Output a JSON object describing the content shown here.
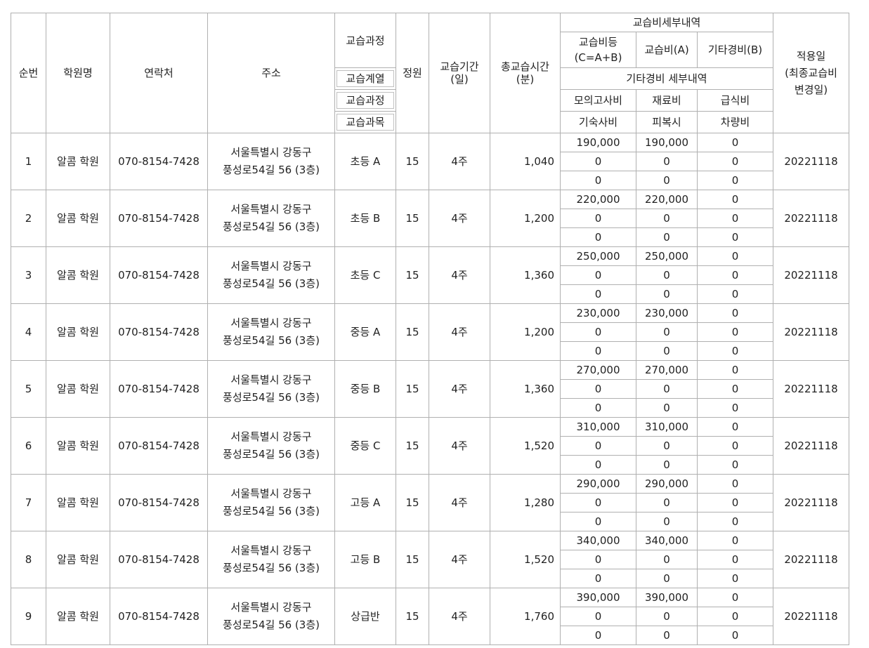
{
  "headers": {
    "no": "순번",
    "academy": "학원명",
    "contact": "연락처",
    "address": "주소",
    "course": "교습과정",
    "course_series": "교습계열",
    "course_process": "교습과정",
    "course_subject": "교습과목",
    "capacity": "정원",
    "period": [
      "교습기간",
      "(일)"
    ],
    "total_time": [
      "총교습시간",
      "(분)"
    ],
    "fee_detail": "교습비세부내역",
    "fee_total": [
      "교습비등",
      "(C=A+B)"
    ],
    "fee_a": "교습비(A)",
    "fee_b": "기타경비(B)",
    "other_detail": "기타경비 세부내역",
    "mock_exam": "모의고사비",
    "material": "재료비",
    "meal": "급식비",
    "dorm": "기숙사비",
    "uniform": "피복시",
    "vehicle": "차량비",
    "apply_date": [
      "적용일",
      "(최종교습비",
      "변경일)"
    ]
  },
  "rows": [
    {
      "no": "1",
      "academy": "알콤 학원",
      "contact": "070-8154-7428",
      "address": [
        "서울특별시 강동구",
        "풍성로54길 56 (3층)"
      ],
      "course": "초등 A",
      "capacity": "15",
      "period": "4주",
      "total_time": "1,040",
      "fees": [
        [
          "190,000",
          "190,000",
          "0"
        ],
        [
          "0",
          "0",
          "0"
        ],
        [
          "0",
          "0",
          "0"
        ]
      ],
      "apply_date": "20221118"
    },
    {
      "no": "2",
      "academy": "알콤 학원",
      "contact": "070-8154-7428",
      "address": [
        "서울특별시 강동구",
        "풍성로54길 56 (3층)"
      ],
      "course": "초등 B",
      "capacity": "15",
      "period": "4주",
      "total_time": "1,200",
      "fees": [
        [
          "220,000",
          "220,000",
          "0"
        ],
        [
          "0",
          "0",
          "0"
        ],
        [
          "0",
          "0",
          "0"
        ]
      ],
      "apply_date": "20221118"
    },
    {
      "no": "3",
      "academy": "알콤 학원",
      "contact": "070-8154-7428",
      "address": [
        "서울특별시 강동구",
        "풍성로54길 56 (3층)"
      ],
      "course": "초등 C",
      "capacity": "15",
      "period": "4주",
      "total_time": "1,360",
      "fees": [
        [
          "250,000",
          "250,000",
          "0"
        ],
        [
          "0",
          "0",
          "0"
        ],
        [
          "0",
          "0",
          "0"
        ]
      ],
      "apply_date": "20221118"
    },
    {
      "no": "4",
      "academy": "알콤 학원",
      "contact": "070-8154-7428",
      "address": [
        "서울특별시 강동구",
        "풍성로54길 56 (3층)"
      ],
      "course": "중등 A",
      "capacity": "15",
      "period": "4주",
      "total_time": "1,200",
      "fees": [
        [
          "230,000",
          "230,000",
          "0"
        ],
        [
          "0",
          "0",
          "0"
        ],
        [
          "0",
          "0",
          "0"
        ]
      ],
      "apply_date": "20221118"
    },
    {
      "no": "5",
      "academy": "알콤 학원",
      "contact": "070-8154-7428",
      "address": [
        "서울특별시 강동구",
        "풍성로54길 56 (3층)"
      ],
      "course": "중등 B",
      "capacity": "15",
      "period": "4주",
      "total_time": "1,360",
      "fees": [
        [
          "270,000",
          "270,000",
          "0"
        ],
        [
          "0",
          "0",
          "0"
        ],
        [
          "0",
          "0",
          "0"
        ]
      ],
      "apply_date": "20221118"
    },
    {
      "no": "6",
      "academy": "알콤 학원",
      "contact": "070-8154-7428",
      "address": [
        "서울특별시 강동구",
        "풍성로54길 56 (3층)"
      ],
      "course": "중등 C",
      "capacity": "15",
      "period": "4주",
      "total_time": "1,520",
      "fees": [
        [
          "310,000",
          "310,000",
          "0"
        ],
        [
          "0",
          "0",
          "0"
        ],
        [
          "0",
          "0",
          "0"
        ]
      ],
      "apply_date": "20221118"
    },
    {
      "no": "7",
      "academy": "알콤 학원",
      "contact": "070-8154-7428",
      "address": [
        "서울특별시 강동구",
        "풍성로54길 56 (3층)"
      ],
      "course": "고등 A",
      "capacity": "15",
      "period": "4주",
      "total_time": "1,280",
      "fees": [
        [
          "290,000",
          "290,000",
          "0"
        ],
        [
          "0",
          "0",
          "0"
        ],
        [
          "0",
          "0",
          "0"
        ]
      ],
      "apply_date": "20221118"
    },
    {
      "no": "8",
      "academy": "알콤 학원",
      "contact": "070-8154-7428",
      "address": [
        "서울특별시 강동구",
        "풍성로54길 56 (3층)"
      ],
      "course": "고등 B",
      "capacity": "15",
      "period": "4주",
      "total_time": "1,520",
      "fees": [
        [
          "340,000",
          "340,000",
          "0"
        ],
        [
          "0",
          "0",
          "0"
        ],
        [
          "0",
          "0",
          "0"
        ]
      ],
      "apply_date": "20221118"
    },
    {
      "no": "9",
      "academy": "알콤 학원",
      "contact": "070-8154-7428",
      "address": [
        "서울특별시 강동구",
        "풍성로54길 56 (3층)"
      ],
      "course": "상급반",
      "capacity": "15",
      "period": "4주",
      "total_time": "1,760",
      "fees": [
        [
          "390,000",
          "390,000",
          "0"
        ],
        [
          "0",
          "0",
          "0"
        ],
        [
          "0",
          "0",
          "0"
        ]
      ],
      "apply_date": "20221118"
    }
  ]
}
